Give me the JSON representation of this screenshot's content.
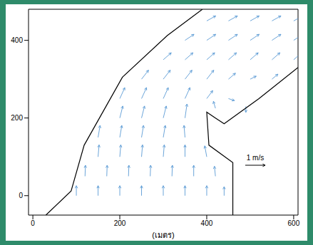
{
  "chart_data": {
    "type": "quiver",
    "x_label": "(เมตร)",
    "xlim": [
      -10,
      610
    ],
    "ylim": [
      -50,
      480
    ],
    "xticks": [
      0,
      200,
      400,
      600
    ],
    "yticks": [
      0,
      200,
      400
    ],
    "color": "#5b9bd5",
    "reference_vector": {
      "value": 1,
      "label": "1 m/s"
    },
    "boundary": {
      "color": "#000000",
      "left": [
        [
          30,
          -50
        ],
        [
          88,
          12
        ],
        [
          118,
          130
        ],
        [
          206,
          305
        ],
        [
          309,
          412
        ],
        [
          390,
          480
        ]
      ],
      "right": [
        [
          460,
          -50
        ],
        [
          460,
          85
        ],
        [
          405,
          130
        ],
        [
          400,
          215
        ],
        [
          420,
          200
        ],
        [
          440,
          185
        ],
        [
          520,
          250
        ],
        [
          610,
          330
        ]
      ]
    },
    "vectors": [
      {
        "x": 100,
        "y": 0,
        "u": 0,
        "v": 0.5
      },
      {
        "x": 150,
        "y": 0,
        "u": 0,
        "v": 0.5
      },
      {
        "x": 200,
        "y": 0,
        "u": 0,
        "v": 0.5
      },
      {
        "x": 250,
        "y": 0,
        "u": 0,
        "v": 0.5
      },
      {
        "x": 300,
        "y": 0,
        "u": 0,
        "v": 0.5
      },
      {
        "x": 350,
        "y": 0,
        "u": 0,
        "v": 0.5
      },
      {
        "x": 400,
        "y": 0,
        "u": 0,
        "v": 0.5
      },
      {
        "x": 440,
        "y": 0,
        "u": 0,
        "v": 0.45
      },
      {
        "x": 120,
        "y": 50,
        "u": 0.02,
        "v": 0.55
      },
      {
        "x": 170,
        "y": 50,
        "u": 0.02,
        "v": 0.55
      },
      {
        "x": 220,
        "y": 50,
        "u": 0.02,
        "v": 0.55
      },
      {
        "x": 270,
        "y": 50,
        "u": 0.02,
        "v": 0.55
      },
      {
        "x": 320,
        "y": 50,
        "u": 0.02,
        "v": 0.55
      },
      {
        "x": 370,
        "y": 50,
        "u": 0,
        "v": 0.55
      },
      {
        "x": 420,
        "y": 50,
        "u": -0.05,
        "v": 0.5
      },
      {
        "x": 150,
        "y": 100,
        "u": 0.05,
        "v": 0.6
      },
      {
        "x": 200,
        "y": 100,
        "u": 0.05,
        "v": 0.6
      },
      {
        "x": 250,
        "y": 100,
        "u": 0.05,
        "v": 0.6
      },
      {
        "x": 300,
        "y": 100,
        "u": 0.05,
        "v": 0.6
      },
      {
        "x": 350,
        "y": 100,
        "u": 0,
        "v": 0.6
      },
      {
        "x": 400,
        "y": 100,
        "u": -0.1,
        "v": 0.55
      },
      {
        "x": 150,
        "y": 150,
        "u": 0.1,
        "v": 0.6
      },
      {
        "x": 200,
        "y": 150,
        "u": 0.1,
        "v": 0.6
      },
      {
        "x": 250,
        "y": 150,
        "u": 0.1,
        "v": 0.6
      },
      {
        "x": 300,
        "y": 150,
        "u": 0.1,
        "v": 0.6
      },
      {
        "x": 350,
        "y": 150,
        "u": -0.05,
        "v": 0.6
      },
      {
        "x": 200,
        "y": 200,
        "u": 0.15,
        "v": 0.6
      },
      {
        "x": 250,
        "y": 200,
        "u": 0.15,
        "v": 0.6
      },
      {
        "x": 300,
        "y": 200,
        "u": 0.15,
        "v": 0.6
      },
      {
        "x": 350,
        "y": 200,
        "u": 0.1,
        "v": 0.7
      },
      {
        "x": 200,
        "y": 250,
        "u": 0.25,
        "v": 0.55
      },
      {
        "x": 250,
        "y": 250,
        "u": 0.25,
        "v": 0.55
      },
      {
        "x": 300,
        "y": 250,
        "u": 0.25,
        "v": 0.55
      },
      {
        "x": 350,
        "y": 250,
        "u": 0.25,
        "v": 0.55
      },
      {
        "x": 400,
        "y": 250,
        "u": 0.3,
        "v": 0.4
      },
      {
        "x": 450,
        "y": 250,
        "u": 0.3,
        "v": -0.1
      },
      {
        "x": 490,
        "y": 230,
        "u": 0,
        "v": -0.3
      },
      {
        "x": 420,
        "y": 225,
        "u": -0.1,
        "v": 0.35
      },
      {
        "x": 250,
        "y": 300,
        "u": 0.35,
        "v": 0.45
      },
      {
        "x": 300,
        "y": 300,
        "u": 0.35,
        "v": 0.45
      },
      {
        "x": 350,
        "y": 300,
        "u": 0.35,
        "v": 0.45
      },
      {
        "x": 400,
        "y": 300,
        "u": 0.35,
        "v": 0.45
      },
      {
        "x": 450,
        "y": 300,
        "u": 0.35,
        "v": 0.3
      },
      {
        "x": 500,
        "y": 300,
        "u": 0.3,
        "v": 0.15
      },
      {
        "x": 550,
        "y": 300,
        "u": 0.3,
        "v": 0.25
      },
      {
        "x": 300,
        "y": 350,
        "u": 0.4,
        "v": 0.35
      },
      {
        "x": 350,
        "y": 350,
        "u": 0.4,
        "v": 0.35
      },
      {
        "x": 400,
        "y": 350,
        "u": 0.4,
        "v": 0.35
      },
      {
        "x": 450,
        "y": 350,
        "u": 0.4,
        "v": 0.35
      },
      {
        "x": 500,
        "y": 350,
        "u": 0.4,
        "v": 0.35
      },
      {
        "x": 550,
        "y": 350,
        "u": 0.4,
        "v": 0.35
      },
      {
        "x": 600,
        "y": 350,
        "u": 0.4,
        "v": 0.35
      },
      {
        "x": 350,
        "y": 400,
        "u": 0.45,
        "v": 0.3
      },
      {
        "x": 400,
        "y": 400,
        "u": 0.45,
        "v": 0.3
      },
      {
        "x": 450,
        "y": 400,
        "u": 0.45,
        "v": 0.3
      },
      {
        "x": 500,
        "y": 400,
        "u": 0.45,
        "v": 0.3
      },
      {
        "x": 550,
        "y": 400,
        "u": 0.45,
        "v": 0.3
      },
      {
        "x": 600,
        "y": 400,
        "u": 0.45,
        "v": 0.3
      },
      {
        "x": 400,
        "y": 450,
        "u": 0.45,
        "v": 0.25
      },
      {
        "x": 450,
        "y": 450,
        "u": 0.45,
        "v": 0.25
      },
      {
        "x": 500,
        "y": 450,
        "u": 0.45,
        "v": 0.25
      },
      {
        "x": 550,
        "y": 450,
        "u": 0.45,
        "v": 0.25
      },
      {
        "x": 600,
        "y": 450,
        "u": 0.45,
        "v": 0.25
      }
    ]
  }
}
